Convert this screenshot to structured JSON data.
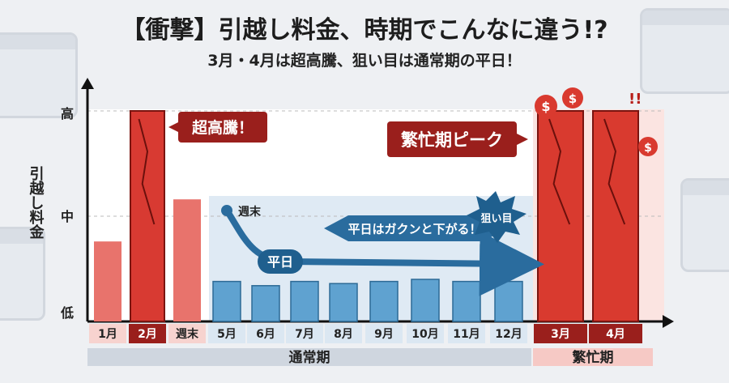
{
  "title": "【衝撃】引越し料金、時期でこんなに違う!?",
  "subtitle": "3月・4月は超高騰、狙い目は通常期の平日！",
  "chart_data": {
    "type": "bar",
    "ylabel": "引越し料金",
    "yticks": [
      "高",
      "中",
      "低"
    ],
    "categories": [
      "1月",
      "2月",
      "週末",
      "5月",
      "6月",
      "7月",
      "8月",
      "9月",
      "10月",
      "11月",
      "12月",
      "3月",
      "4月"
    ],
    "values": [
      0.38,
      1.0,
      0.58,
      0.19,
      0.17,
      0.19,
      0.18,
      0.19,
      0.2,
      0.19,
      0.19,
      1.0,
      1.0
    ],
    "ylim": [
      0,
      1
    ],
    "groups": [
      {
        "label": "通常期",
        "from": 0,
        "to": 10
      },
      {
        "label": "繁忙期",
        "from": 11,
        "to": 12
      }
    ],
    "annotations": {
      "spike_jan": "超高騰！",
      "peak": "繁忙期ピーク",
      "weekend": "週末",
      "weekday": "平日",
      "drop": "平日はガクンと下がる！",
      "target": "狙い目"
    },
    "colors": {
      "normal_bar": "#e8736c",
      "spike_bar": "#d83a32",
      "weekday_bar": "#5fa2d0",
      "peak_bar": "#d93a2f",
      "arrow": "#2a6c9e",
      "label_dark": "#9a1f1c"
    }
  }
}
